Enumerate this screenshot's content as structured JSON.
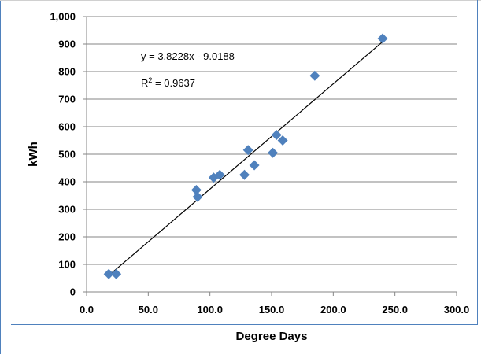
{
  "chart_data": {
    "type": "scatter",
    "title": "",
    "xlabel": "Degree Days",
    "ylabel": "kWh",
    "xlim": [
      0,
      300
    ],
    "ylim": [
      0,
      1000
    ],
    "x_ticks": [
      0,
      50,
      100,
      150,
      200,
      250,
      300
    ],
    "x_tick_labels": [
      "0.0",
      "50.0",
      "100.0",
      "150.0",
      "200.0",
      "250.0",
      "300.0"
    ],
    "y_ticks": [
      0,
      100,
      200,
      300,
      400,
      500,
      600,
      700,
      800,
      900,
      1000
    ],
    "y_tick_labels": [
      "0",
      "100",
      "200",
      "300",
      "400",
      "500",
      "600",
      "700",
      "800",
      "900",
      "1,000"
    ],
    "grid": "horizontal",
    "legend": "none",
    "marker_color": "#4f81bd",
    "trendline_color": "#000000",
    "points": [
      {
        "x": 18,
        "y": 65
      },
      {
        "x": 24,
        "y": 65
      },
      {
        "x": 89,
        "y": 370
      },
      {
        "x": 90,
        "y": 345
      },
      {
        "x": 103,
        "y": 415
      },
      {
        "x": 108,
        "y": 425
      },
      {
        "x": 128,
        "y": 425
      },
      {
        "x": 131,
        "y": 515
      },
      {
        "x": 136,
        "y": 460
      },
      {
        "x": 151,
        "y": 505
      },
      {
        "x": 154,
        "y": 570
      },
      {
        "x": 159,
        "y": 550
      },
      {
        "x": 185,
        "y": 785
      },
      {
        "x": 240,
        "y": 920
      }
    ],
    "trendline": {
      "slope": 3.8228,
      "intercept": -9.0188,
      "x_range": [
        18,
        240
      ],
      "equation_text": "y = 3.8228x - 9.0188",
      "r2_prefix": "R",
      "r2_suffix": " = 0.9637"
    }
  }
}
